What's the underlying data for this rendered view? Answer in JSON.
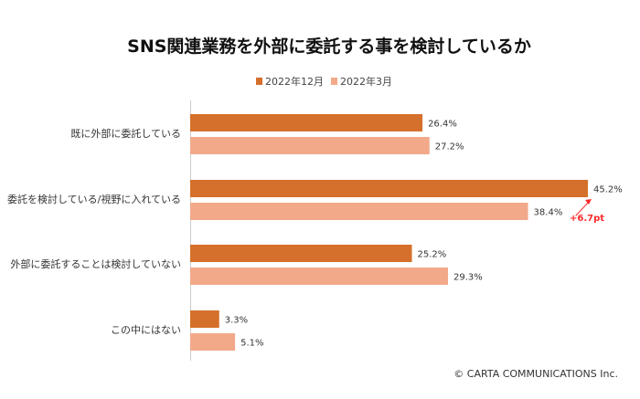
{
  "chart_data": {
    "type": "bar",
    "orientation": "horizontal",
    "title": "SNS関連業務を外部に委託する事を検討しているか",
    "categories": [
      "既に外部に委託している",
      "委託を検討している/視野に入れている",
      "外部に委託することは検討していない",
      "この中にはない"
    ],
    "series": [
      {
        "name": "2022年12月",
        "values": [
          26.4,
          45.2,
          25.2,
          3.3
        ],
        "labels": [
          "26.4%",
          "45.2%",
          "25.2%",
          "3.3%"
        ],
        "color": "#D4702B"
      },
      {
        "name": "2022年3月",
        "values": [
          27.2,
          38.4,
          29.3,
          5.1
        ],
        "labels": [
          "27.2%",
          "38.4%",
          "29.3%",
          "5.1%"
        ],
        "color": "#F2A98A"
      }
    ],
    "xlim": [
      0,
      50
    ],
    "legend": "top-center",
    "annotation": {
      "text": "+6.7pt",
      "color": "#FF2A2A"
    },
    "grid": false
  },
  "footer": {
    "copyright": "© CARTA COMMUNICATIONS Inc."
  }
}
